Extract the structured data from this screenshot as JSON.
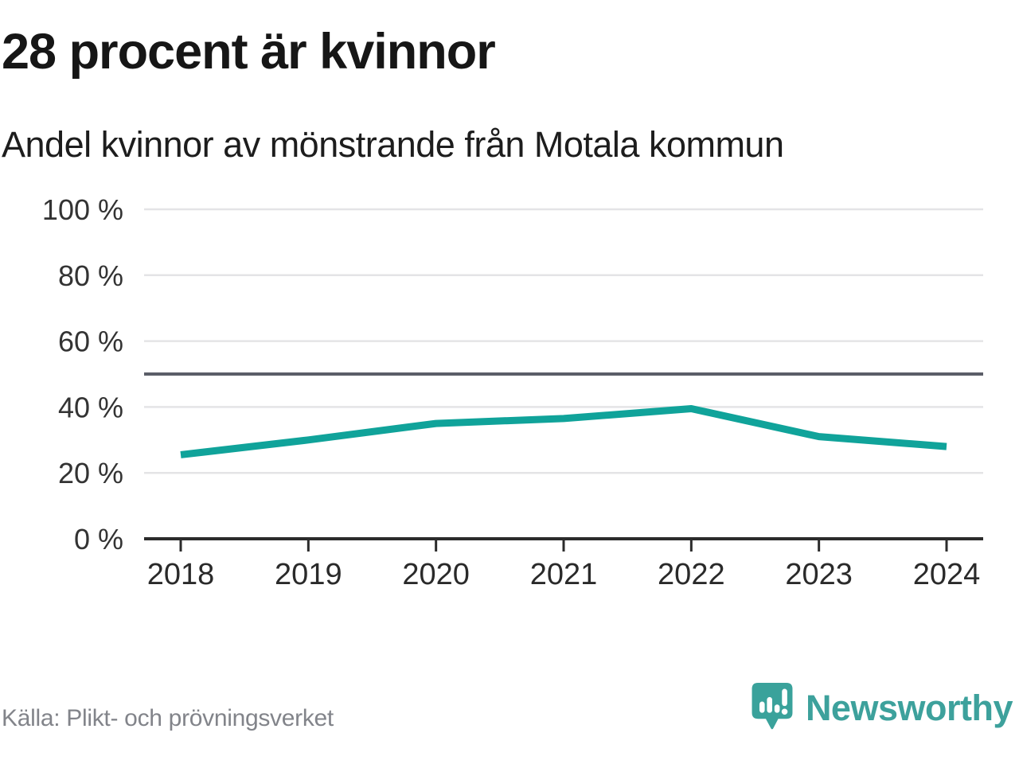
{
  "header": {
    "title": "28 procent är kvinnor",
    "subtitle": "Andel kvinnor av mönstrande från Motala kommun"
  },
  "chart_data": {
    "type": "line",
    "title": "28 procent är kvinnor",
    "subtitle": "Andel kvinnor av mönstrande från Motala kommun",
    "categories": [
      "2018",
      "2019",
      "2020",
      "2021",
      "2022",
      "2023",
      "2024"
    ],
    "series": [
      {
        "name": "Andel kvinnor av mönstrande",
        "values": [
          25.5,
          30,
          35,
          36.5,
          39.5,
          31,
          28
        ]
      }
    ],
    "unit": "%",
    "ylim": [
      0,
      100
    ],
    "yticks": [
      0,
      20,
      40,
      60,
      80,
      100
    ],
    "ytick_suffix": " %",
    "reference_line": {
      "value": 50
    },
    "grid": "horizontal",
    "legend": "none"
  },
  "footer": {
    "source": "Källa: Plikt- och prövningsverket",
    "logo_text": "Newsworthy"
  },
  "colors": {
    "line": "#10a39a",
    "grid": "#e4e4e6",
    "axis": "#2b2b2b",
    "reference": "#5b5e68",
    "tick_label": "#333333",
    "x_label": "#2a2a2a",
    "logo": "#3da19c"
  }
}
